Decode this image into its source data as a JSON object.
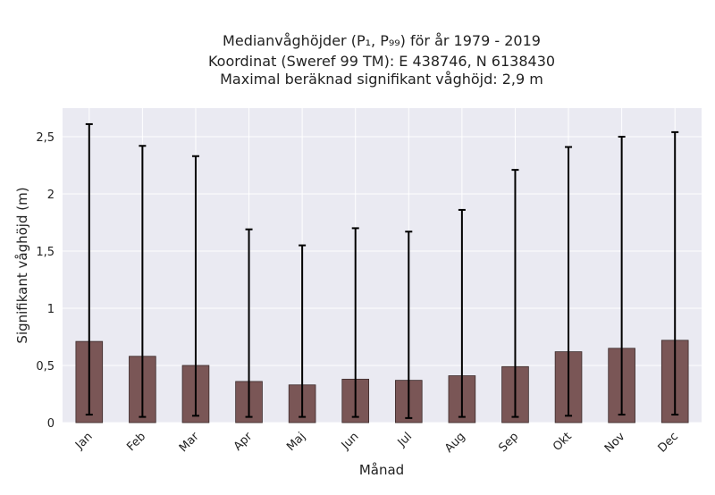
{
  "chart_data": {
    "type": "bar",
    "title_lines": [
      "Medianvåghöjder (P₁, P₉₉) för år 1979 - 2019",
      "Koordinat (Sweref 99 TM): E 438746, N 6138430",
      "Maximal beräknad signifikant våghöjd: 2,9 m"
    ],
    "xlabel": "Månad",
    "ylabel": "Signifikant våghöjd (m)",
    "categories": [
      "Jan",
      "Feb",
      "Mar",
      "Apr",
      "Maj",
      "Jun",
      "Jul",
      "Aug",
      "Sep",
      "Okt",
      "Nov",
      "Dec"
    ],
    "values": [
      0.71,
      0.58,
      0.5,
      0.36,
      0.33,
      0.38,
      0.37,
      0.41,
      0.49,
      0.62,
      0.65,
      0.72
    ],
    "error_low": [
      0.07,
      0.05,
      0.06,
      0.05,
      0.05,
      0.05,
      0.04,
      0.05,
      0.05,
      0.06,
      0.07,
      0.07
    ],
    "error_high": [
      2.61,
      2.42,
      2.33,
      1.69,
      1.55,
      1.7,
      1.67,
      1.86,
      2.21,
      2.41,
      2.5,
      2.54
    ],
    "ylim": [
      0,
      2.75
    ],
    "yticks": [
      0,
      0.5,
      1,
      1.5,
      2,
      2.5
    ],
    "ytick_labels": [
      "0",
      "0,5",
      "1",
      "1,5",
      "2",
      "2,5"
    ],
    "grid": true,
    "bar_color": "#7a5656",
    "bar_edge_color": "#3a2a2a",
    "error_color": "#000000",
    "plot_background": "#eaeaf2",
    "grid_color": "#ffffff"
  }
}
